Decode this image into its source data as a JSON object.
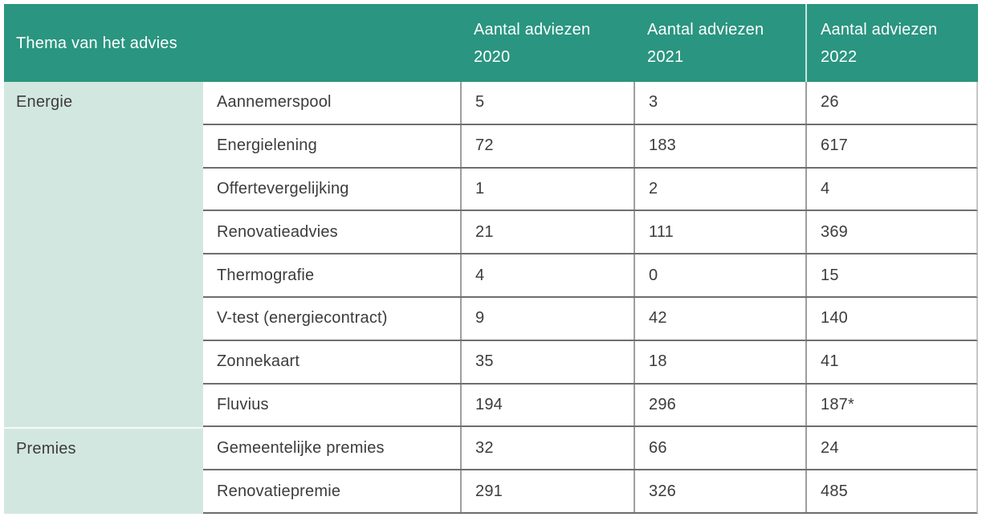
{
  "colors": {
    "header_bg": "#2a9580",
    "header_text": "#ffffff",
    "category_bg": "#d3e7e1",
    "body_text": "#3c3c3c",
    "row_divider": "#6e6e6e",
    "column_divider": "#9e9e9e",
    "header_year_divider": "#cfe5df",
    "right_edge": "#c6c6c6"
  },
  "table": {
    "header": {
      "theme": "Thema van het advies",
      "columns": [
        {
          "label": "Aantal adviezen",
          "year": "2020"
        },
        {
          "label": "Aantal adviezen",
          "year": "2021"
        },
        {
          "label": "Aantal adviezen",
          "year": "2022"
        }
      ]
    },
    "groups": [
      {
        "category": "Energie",
        "rows": [
          {
            "label": "Aannemerspool",
            "values": [
              "5",
              "3",
              "26"
            ]
          },
          {
            "label": "Energielening",
            "values": [
              "72",
              "183",
              "617"
            ]
          },
          {
            "label": "Offertevergelijking",
            "values": [
              "1",
              "2",
              "4"
            ]
          },
          {
            "label": "Renovatieadvies",
            "values": [
              "21",
              "111",
              "369"
            ]
          },
          {
            "label": "Thermografie",
            "values": [
              "4",
              "0",
              "15"
            ]
          },
          {
            "label": "V-test (energiecontract)",
            "values": [
              "9",
              "42",
              "140"
            ]
          },
          {
            "label": "Zonnekaart",
            "values": [
              "35",
              "18",
              "41"
            ]
          },
          {
            "label": "Fluvius",
            "values": [
              "194",
              "296",
              "187*"
            ]
          }
        ]
      },
      {
        "category": "Premies",
        "rows": [
          {
            "label": "Gemeentelijke premies",
            "values": [
              "32",
              "66",
              "24"
            ]
          },
          {
            "label": "Renovatiepremie",
            "values": [
              "291",
              "326",
              "485"
            ]
          }
        ]
      }
    ]
  }
}
